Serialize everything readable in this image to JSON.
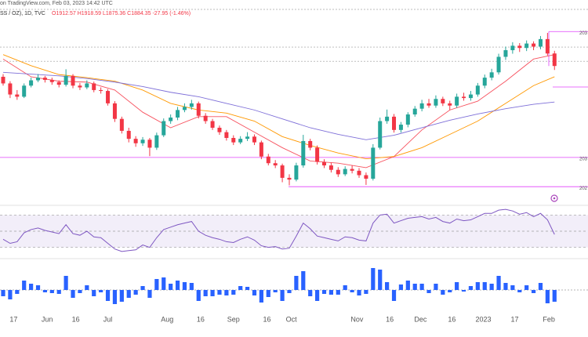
{
  "header": {
    "source": "on TradingView.com, Feb 03, 2023 14:42 UTC",
    "symbol": "SS / OZ), 1D, TVC",
    "ohlc": "O1912.57 H1918.59 L1875.36 C1884.35 -27.95 (-1.46%)"
  },
  "chart_data": [
    {
      "type": "candlestick",
      "up_color": "#26a69a",
      "down_color": "#f23645",
      "xlim": [
        -0.45,
        83.8
      ],
      "ylim": [
        1577,
        2012
      ],
      "xticks": [
        {
          "value": 1.5,
          "label": "17"
        },
        {
          "value": 6.3,
          "label": "Jun"
        },
        {
          "value": 10.4,
          "label": "16"
        },
        {
          "value": 15,
          "label": "Jul"
        },
        {
          "value": 23.5,
          "label": "Aug"
        },
        {
          "value": 28.3,
          "label": "16"
        },
        {
          "value": 33,
          "label": "Sep"
        },
        {
          "value": 37.8,
          "label": "16"
        },
        {
          "value": 41.3,
          "label": "Oct"
        },
        {
          "value": 50.7,
          "label": "Nov"
        },
        {
          "value": 55.4,
          "label": "16"
        },
        {
          "value": 59.8,
          "label": "Dec"
        },
        {
          "value": 64.3,
          "label": "16"
        },
        {
          "value": 68.8,
          "label": "2023"
        },
        {
          "value": 73.3,
          "label": "17"
        },
        {
          "value": 78.2,
          "label": "Feb"
        }
      ],
      "open": [
        1860,
        1845,
        1820,
        1815,
        1840,
        1852,
        1858,
        1853,
        1848,
        1842,
        1862,
        1840,
        1836,
        1845,
        1830,
        1828,
        1800,
        1765,
        1738,
        1720,
        1710,
        1718,
        1700,
        1728,
        1760,
        1768,
        1785,
        1792,
        1800,
        1772,
        1760,
        1745,
        1735,
        1722,
        1712,
        1720,
        1725,
        1712,
        1680,
        1665,
        1660,
        1632,
        1628,
        1660,
        1715,
        1700,
        1668,
        1660,
        1650,
        1640,
        1652,
        1648,
        1638,
        1630,
        1700,
        1760,
        1770,
        1740,
        1752,
        1775,
        1788,
        1800,
        1795,
        1810,
        1800,
        1795,
        1815,
        1812,
        1820,
        1840,
        1858,
        1870,
        1905,
        1920,
        1930,
        1925,
        1935,
        1928,
        1945,
        1912.57
      ],
      "high": [
        1866,
        1850,
        1830,
        1845,
        1858,
        1866,
        1862,
        1858,
        1852,
        1877,
        1866,
        1846,
        1852,
        1849,
        1836,
        1832,
        1805,
        1770,
        1745,
        1726,
        1724,
        1722,
        1734,
        1766,
        1775,
        1792,
        1800,
        1808,
        1804,
        1778,
        1765,
        1750,
        1740,
        1728,
        1726,
        1735,
        1730,
        1716,
        1686,
        1672,
        1664,
        1640,
        1666,
        1729,
        1720,
        1705,
        1674,
        1666,
        1656,
        1658,
        1660,
        1654,
        1644,
        1708,
        1768,
        1786,
        1776,
        1758,
        1780,
        1794,
        1808,
        1810,
        1818,
        1815,
        1806,
        1822,
        1824,
        1828,
        1846,
        1865,
        1878,
        1912,
        1928,
        1938,
        1936,
        1942,
        1940,
        1952,
        1959,
        1918.59
      ],
      "low": [
        1840,
        1812,
        1808,
        1812,
        1836,
        1848,
        1847,
        1842,
        1836,
        1838,
        1834,
        1830,
        1832,
        1825,
        1822,
        1795,
        1758,
        1732,
        1712,
        1702,
        1704,
        1681,
        1695,
        1724,
        1754,
        1762,
        1780,
        1786,
        1766,
        1754,
        1740,
        1729,
        1716,
        1706,
        1708,
        1715,
        1706,
        1674,
        1660,
        1654,
        1622,
        1615,
        1624,
        1655,
        1694,
        1662,
        1654,
        1644,
        1634,
        1636,
        1642,
        1632,
        1616,
        1626,
        1696,
        1754,
        1734,
        1734,
        1746,
        1770,
        1782,
        1790,
        1790,
        1794,
        1785,
        1790,
        1806,
        1806,
        1815,
        1834,
        1852,
        1865,
        1898,
        1912,
        1916,
        1918,
        1920,
        1922,
        1908,
        1875.36
      ],
      "close": [
        1845,
        1820,
        1815,
        1840,
        1852,
        1858,
        1853,
        1848,
        1842,
        1862,
        1840,
        1836,
        1845,
        1830,
        1828,
        1800,
        1765,
        1738,
        1720,
        1710,
        1718,
        1700,
        1728,
        1760,
        1768,
        1785,
        1792,
        1800,
        1772,
        1760,
        1745,
        1735,
        1722,
        1712,
        1720,
        1725,
        1712,
        1680,
        1665,
        1660,
        1632,
        1628,
        1660,
        1715,
        1700,
        1668,
        1660,
        1650,
        1640,
        1652,
        1648,
        1638,
        1630,
        1700,
        1760,
        1770,
        1740,
        1752,
        1775,
        1788,
        1800,
        1795,
        1810,
        1800,
        1795,
        1815,
        1812,
        1820,
        1840,
        1858,
        1870,
        1905,
        1920,
        1930,
        1925,
        1935,
        1928,
        1945,
        1912.57,
        1884.35
      ],
      "ma_x": [
        0,
        4,
        8,
        12,
        16,
        20,
        24,
        28,
        32,
        36,
        40,
        44,
        48,
        52,
        56,
        60,
        64,
        68,
        72,
        76,
        79
      ],
      "ma": [
        {
          "color": "#f7525f",
          "values": [
            1900,
            1860,
            1850,
            1848,
            1830,
            1780,
            1745,
            1770,
            1770,
            1735,
            1700,
            1670,
            1665,
            1655,
            1680,
            1740,
            1785,
            1805,
            1850,
            1900,
            1910
          ]
        },
        {
          "color": "#ff9800",
          "values": [
            1910,
            1885,
            1865,
            1858,
            1850,
            1830,
            1800,
            1785,
            1778,
            1760,
            1725,
            1705,
            1688,
            1675,
            1680,
            1700,
            1730,
            1760,
            1800,
            1840,
            1860
          ]
        },
        {
          "color": "#7e6fd8",
          "values": [
            1870,
            1866,
            1862,
            1856,
            1848,
            1838,
            1825,
            1815,
            1800,
            1785,
            1765,
            1745,
            1730,
            1718,
            1728,
            1745,
            1762,
            1776,
            1788,
            1798,
            1803
          ]
        }
      ],
      "levels": [
        1962,
        1837,
        1678,
        1612
      ],
      "level_labels": [
        "203",
        null,
        "203",
        "202"
      ],
      "level_color": "#e040fb",
      "guide_levels": [
        1927,
        1895
      ]
    },
    {
      "type": "line",
      "color": "#7e57c2",
      "ylim": [
        20,
        80
      ],
      "bands": [
        70,
        50,
        30
      ],
      "band_fill": "#ede7f6",
      "values": [
        40,
        35,
        37,
        48,
        52,
        54,
        51,
        49,
        47,
        58,
        47,
        45,
        50,
        43,
        42,
        35,
        28,
        25,
        26,
        27,
        33,
        30,
        42,
        52,
        55,
        58,
        60,
        62,
        50,
        45,
        42,
        40,
        37,
        36,
        40,
        43,
        39,
        32,
        30,
        31,
        28,
        29,
        44,
        60,
        53,
        44,
        42,
        40,
        38,
        43,
        42,
        39,
        38,
        60,
        70,
        71,
        60,
        63,
        66,
        67,
        68,
        65,
        67,
        62,
        60,
        65,
        63,
        64,
        68,
        72,
        72,
        76,
        77,
        75,
        71,
        73,
        68,
        72,
        64,
        46
      ]
    },
    {
      "type": "bar",
      "color": "#2962ff",
      "ylim": [
        -30,
        34
      ],
      "values": [
        -8,
        -12,
        -5,
        12,
        8,
        6,
        -3,
        -4,
        -5,
        18,
        -10,
        -4,
        6,
        -8,
        -3,
        -14,
        -18,
        -15,
        -10,
        -6,
        5,
        -10,
        14,
        16,
        8,
        12,
        10,
        9,
        -14,
        -8,
        -8,
        -6,
        -7,
        -6,
        5,
        4,
        -7,
        -16,
        -9,
        -3,
        -14,
        -4,
        18,
        24,
        -8,
        -14,
        -5,
        -6,
        -6,
        6,
        -3,
        -7,
        -5,
        28,
        26,
        10,
        -14,
        7,
        12,
        8,
        8,
        -4,
        8,
        -6,
        -3,
        10,
        -2,
        5,
        10,
        10,
        8,
        18,
        9,
        6,
        -3,
        6,
        -4,
        9,
        -17,
        -15
      ]
    }
  ]
}
